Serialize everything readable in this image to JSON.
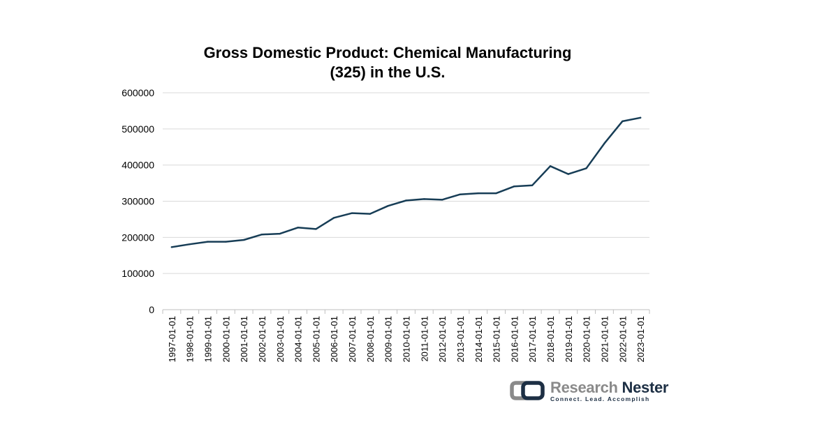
{
  "chart_data": {
    "type": "line",
    "title": [
      "Gross Domestic Product: Chemical Manufacturing",
      "(325) in the U.S."
    ],
    "xlabel": "",
    "ylabel": "",
    "ylim": [
      0,
      600000
    ],
    "y_ticks": [
      "0",
      "100000",
      "200000",
      "300000",
      "400000",
      "500000",
      "600000"
    ],
    "grid": true,
    "legend": "none",
    "colors": {
      "line": "#173d56",
      "grid": "#d9d9d9",
      "axis": "#bfbfbf"
    },
    "categories": [
      "1997-01-01",
      "1998-01-01",
      "1999-01-01",
      "2000-01-01",
      "2001-01-01",
      "2002-01-01",
      "2003-01-01",
      "2004-01-01",
      "2005-01-01",
      "2006-01-01",
      "2007-01-01",
      "2008-01-01",
      "2009-01-01",
      "2010-01-01",
      "2011-01-01",
      "2012-01-01",
      "2013-01-01",
      "2014-01-01",
      "2015-01-01",
      "2016-01-01",
      "2017-01-01",
      "2018-01-01",
      "2019-01-01",
      "2020-01-01",
      "2021-01-01",
      "2022-01-01",
      "2023-01-01"
    ],
    "series": [
      {
        "values": [
          173000,
          181000,
          188000,
          188000,
          193000,
          208000,
          210000,
          227000,
          223000,
          254000,
          267000,
          265000,
          287000,
          302000,
          306000,
          304000,
          319000,
          322000,
          322000,
          341000,
          344000,
          397000,
          375000,
          391000,
          460000,
          521000,
          531000
        ]
      }
    ]
  },
  "logo": {
    "name_part1": "Research",
    "name_part2": "Nester",
    "tagline": "Connect. Lead. Accomplish",
    "colors": {
      "gray": "#8a8a8a",
      "navy": "#1d2f44"
    }
  }
}
